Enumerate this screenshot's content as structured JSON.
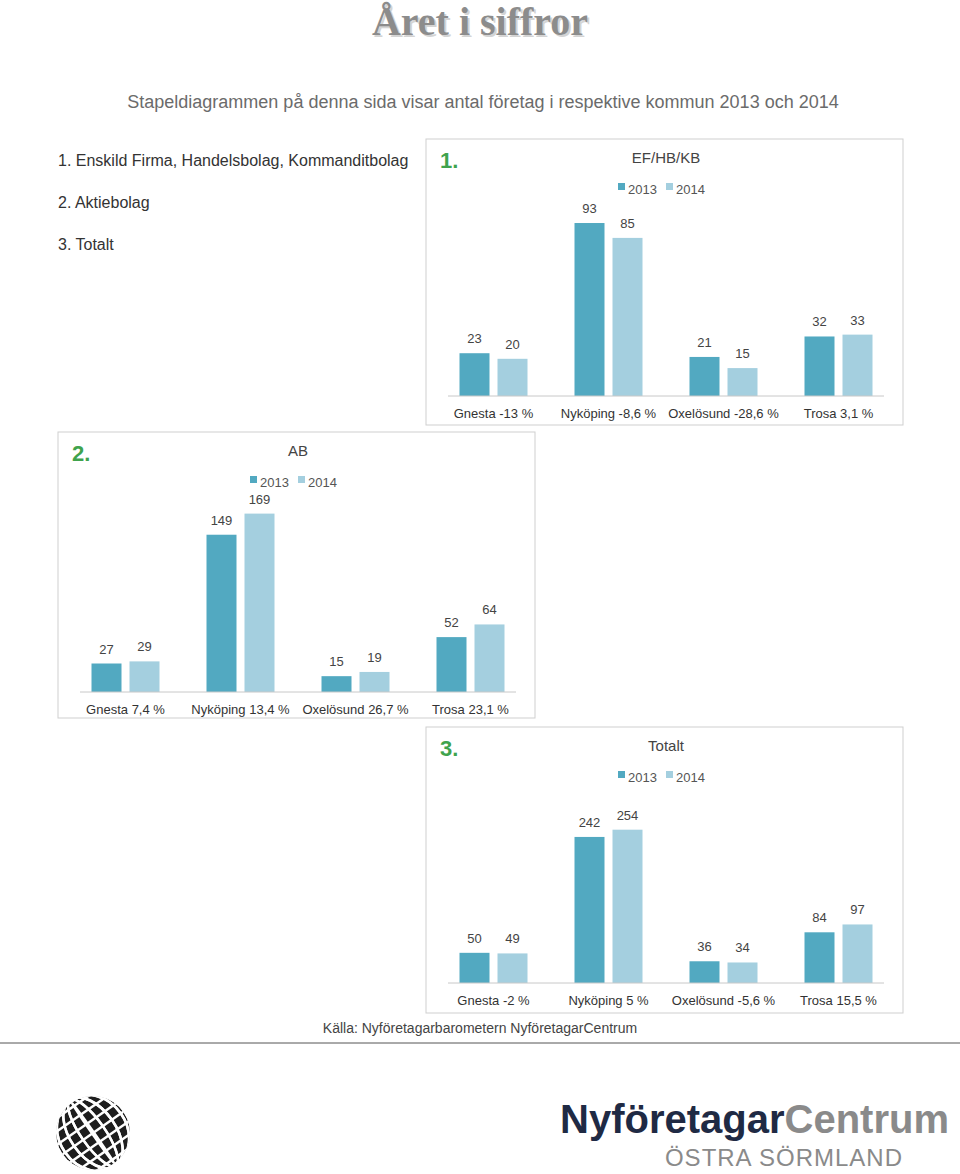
{
  "page": {
    "title": "Året i siffror",
    "subtitle": "Stapeldiagrammen på denna sida visar antal företag i respektive kommun 2013 och 2014",
    "list": [
      "1. Enskild Firma, Handelsbolag, Kommanditbolag",
      "2. Aktiebolag",
      "3. Totalt"
    ],
    "source": "Källa: Nyföretagarbarometern NyföretagarCentrum",
    "logo": {
      "name_dark": "Nyföretagar",
      "name_light": "Centrum",
      "region": "ÖSTRA SÖRMLAND"
    }
  },
  "chart_data": [
    {
      "type": "bar",
      "panel_label": "1.",
      "title": "EF/HB/KB",
      "categories": [
        "Gnesta -13 %",
        "Nyköping -8,6 %",
        "Oxelösund -28,6 %",
        "Trosa 3,1 %"
      ],
      "series": [
        {
          "name": "2013",
          "color": "#52a9c1",
          "values": [
            23,
            93,
            21,
            32
          ]
        },
        {
          "name": "2014",
          "color": "#a4cfdf",
          "values": [
            20,
            85,
            15,
            33
          ]
        }
      ],
      "ylim": [
        0,
        100
      ],
      "data_labels": true,
      "tick_labels": "x",
      "legend": "top"
    },
    {
      "type": "bar",
      "panel_label": "2.",
      "title": "AB",
      "categories": [
        "Gnesta 7,4 %",
        "Nyköping 13,4 %",
        "Oxelösund 26,7 %",
        "Trosa 23,1 %"
      ],
      "series": [
        {
          "name": "2013",
          "color": "#52a9c1",
          "values": [
            27,
            149,
            15,
            52
          ]
        },
        {
          "name": "2014",
          "color": "#a4cfdf",
          "values": [
            29,
            169,
            19,
            64
          ]
        }
      ],
      "ylim": [
        0,
        180
      ],
      "data_labels": true,
      "tick_labels": "x",
      "legend": "top"
    },
    {
      "type": "bar",
      "panel_label": "3.",
      "title": "Totalt",
      "categories": [
        "Gnesta -2 %",
        "Nyköping 5 %",
        "Oxelösund -5,6 %",
        "Trosa 15,5 %"
      ],
      "series": [
        {
          "name": "2013",
          "color": "#52a9c1",
          "values": [
            50,
            242,
            36,
            84
          ]
        },
        {
          "name": "2014",
          "color": "#a4cfdf",
          "values": [
            49,
            254,
            34,
            97
          ]
        }
      ],
      "ylim": [
        0,
        280
      ],
      "data_labels": true,
      "tick_labels": "x",
      "legend": "top"
    }
  ]
}
